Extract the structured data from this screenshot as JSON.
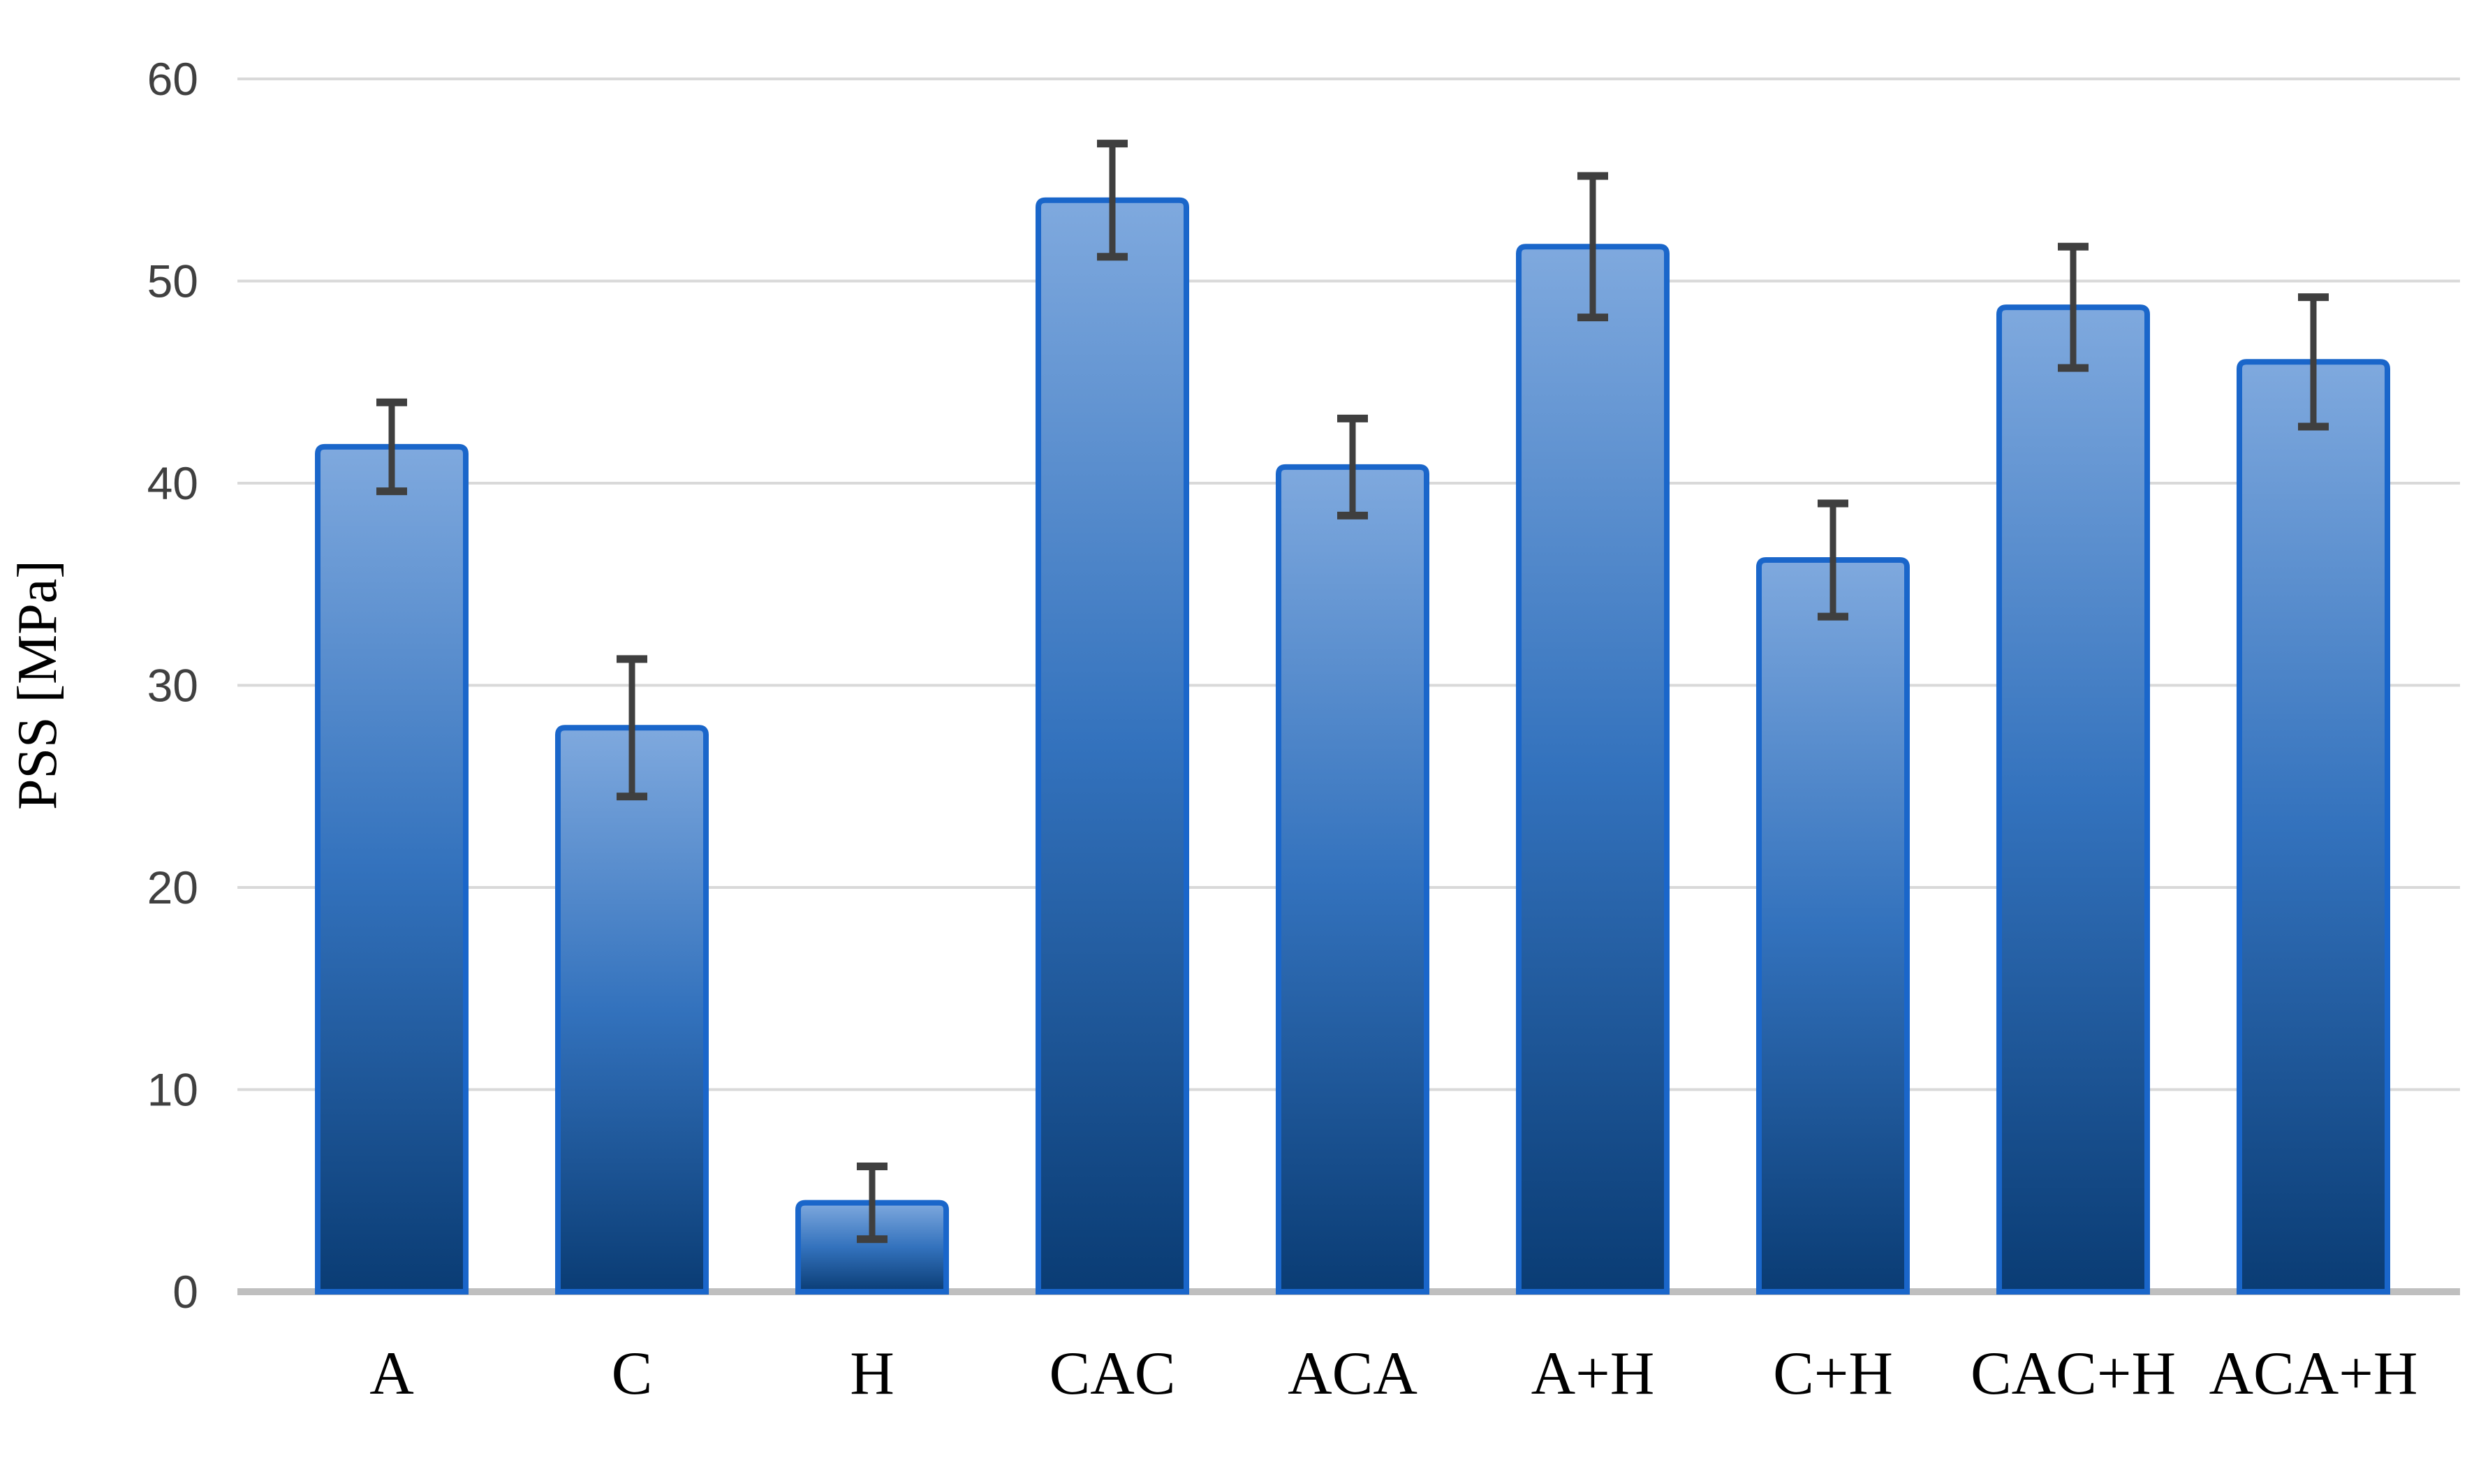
{
  "page": {
    "background": "#ffffff"
  },
  "chart_data": {
    "type": "bar",
    "title": "",
    "xlabel": "",
    "ylabel": "PSS [MPa]",
    "categories": [
      "A",
      "C",
      "H",
      "CAC",
      "ACA",
      "A+H",
      "C+H",
      "CAC+H",
      "ACA+H"
    ],
    "values": [
      41.8,
      27.9,
      4.4,
      54.0,
      40.8,
      51.7,
      36.2,
      48.7,
      46.0
    ],
    "error_bars": [
      2.2,
      3.4,
      1.8,
      2.8,
      2.4,
      3.5,
      2.8,
      3.0,
      3.2
    ],
    "ylim": [
      0,
      60
    ],
    "ytick_step": 10,
    "yticks": [
      0,
      10,
      20,
      30,
      40,
      50,
      60
    ],
    "grid": "horizontal",
    "legend": "none",
    "colors": {
      "bar_gradient_top": "#7FA9DE",
      "bar_gradient_mid": "#3372BD",
      "bar_gradient_bottom": "#0A3C74",
      "bar_border": "#1A66CA",
      "error_bar": "#3F3F3F",
      "gridline": "#D9D9D9",
      "axis_line": "#BFBFBF",
      "tick_label": "#404040",
      "category_label": "#000000"
    }
  }
}
